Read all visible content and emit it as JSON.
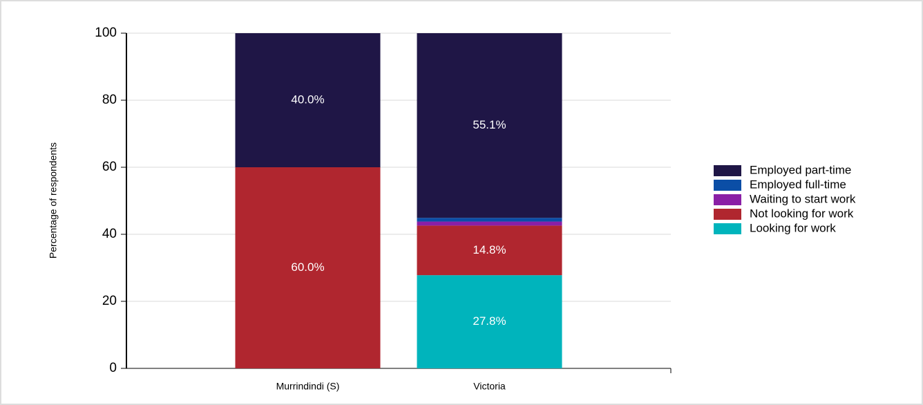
{
  "chart_data": {
    "type": "stacked_bar",
    "y_label": "Percentage of respondents",
    "categories": [
      "Murrindindi (S)",
      "Victoria"
    ],
    "series": [
      {
        "name": "Looking for work",
        "color": "#00b4bc",
        "values": [
          0,
          27.8
        ],
        "value_labels": [
          null,
          "27.8%"
        ]
      },
      {
        "name": "Not looking for work",
        "color": "#b0262f",
        "values": [
          60.0,
          14.8
        ],
        "value_labels": [
          "60.0%",
          "14.8%"
        ]
      },
      {
        "name": "Waiting to start work",
        "color": "#8a1fa6",
        "values": [
          0,
          1.2
        ],
        "value_labels": [
          null,
          null
        ]
      },
      {
        "name": "Employed full-time",
        "color": "#0b4ea6",
        "values": [
          0,
          1.1
        ],
        "value_labels": [
          null,
          null
        ]
      },
      {
        "name": "Employed part-time",
        "color": "#1f1646",
        "values": [
          40.0,
          55.1
        ],
        "value_labels": [
          "40.0%",
          "55.1%"
        ]
      }
    ],
    "ylim": [
      0,
      100
    ],
    "yticks": [
      0,
      20,
      40,
      60,
      80,
      100
    ],
    "grid": true,
    "legend": "right"
  }
}
